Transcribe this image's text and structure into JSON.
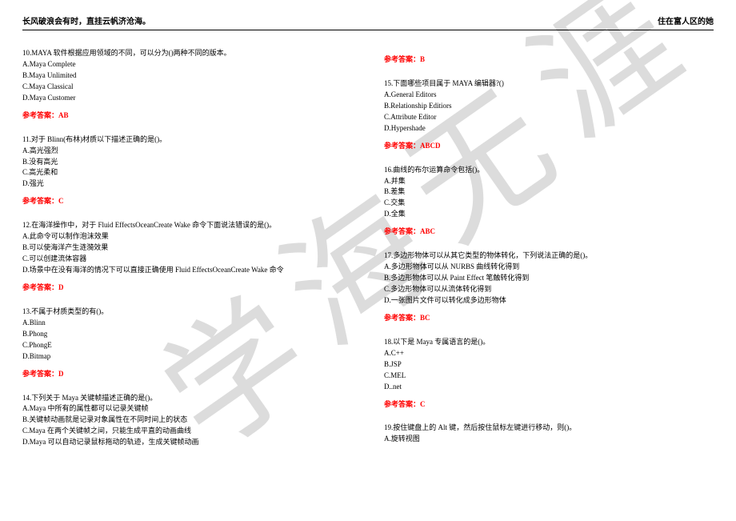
{
  "header": {
    "left": "长风破浪会有时，直挂云帆济沧海。",
    "right": "住在富人区的她"
  },
  "watermark": {
    "text": "学海无涯",
    "color": "#d9d9d9",
    "fontsize": 90,
    "rotate_deg": 30
  },
  "answer_prefix": "参考答案：",
  "questions_left": [
    {
      "stem": "10.MAYA 软件根据应用领域的不同，可以分为()两种不同的版本。",
      "options": [
        "A.Maya Complete",
        "B.Maya Unlimited",
        "C.Maya Classical",
        "D.Maya Customer"
      ],
      "answer": "AB"
    },
    {
      "stem": "11.对于 Blinn(布林)材质以下描述正确的是()。",
      "options": [
        "A.高光强烈",
        "B.没有高光",
        "C.高光柔和",
        "D.强光"
      ],
      "answer": "C"
    },
    {
      "stem": "12.在海洋操作中，对于 Fluid EffectsOceanCreate Wake 命令下面说法错误的是()。",
      "options": [
        "A.此命令可以制作泡沫效果",
        "B.可以使海洋产生涟漪效果",
        "C.可以创建流体容器",
        "D.场景中在没有海洋的情况下可以直接正确使用 Fluid EffectsOceanCreate Wake 命令"
      ],
      "answer": "D"
    },
    {
      "stem": "13.不属于材质类型的有()。",
      "options": [
        "A.Blinn",
        "B.Phong",
        "C.PhongE",
        "D.Bitmap"
      ],
      "answer": "D"
    },
    {
      "stem": "14.下列关于 Maya 关键帧描述正确的是()。",
      "options": [
        "A.Maya 中所有的属性都可以记录关键帧",
        "B.关键帧动画就是记录对象属性在不同时间上的状态",
        "C.Maya 在两个关键帧之间，只能生成平直的动画曲线",
        "D.Maya 可以自动记录鼠标拖动的轨迹，生成关键帧动画"
      ],
      "answer": null
    }
  ],
  "questions_right": [
    {
      "stem": null,
      "options": [],
      "answer": "B",
      "answer_only": true
    },
    {
      "stem": "15.下面哪些项目属于 MAYA 编辑器?()",
      "options": [
        "A.General Editors",
        "B.Relationship Editiors",
        "C.Attribute Editor",
        "D.Hypershade"
      ],
      "answer": "ABCD"
    },
    {
      "stem": "16.曲线的布尔运算命令包括()。",
      "options": [
        "A.并集",
        "B.差集",
        "C.交集",
        "D.全集"
      ],
      "answer": "ABC"
    },
    {
      "stem": "17.多边形物体可以从其它类型的物体转化，下列说法正确的是()。",
      "options": [
        "A.多边形物体可以从 NURBS 曲线转化得到",
        "B.多边形物体可以从 Paint Effect 笔触转化得到",
        "C.多边形物体可以从流体转化得到",
        "D.一张图片文件可以转化成多边形物体"
      ],
      "answer": "BC"
    },
    {
      "stem": "18.以下是 Maya 专属语言的是()。",
      "options": [
        "A.C++",
        "B.JSP",
        "C.MEL",
        "D..net"
      ],
      "answer": "C"
    },
    {
      "stem": "19.按住键盘上的 Alt 键，然后按住鼠标左键进行移动，则()。",
      "options": [
        "A.旋转视图"
      ],
      "answer": null
    }
  ],
  "colors": {
    "text": "#000000",
    "answer": "#ff0000",
    "background": "#ffffff",
    "rule": "#000000"
  }
}
